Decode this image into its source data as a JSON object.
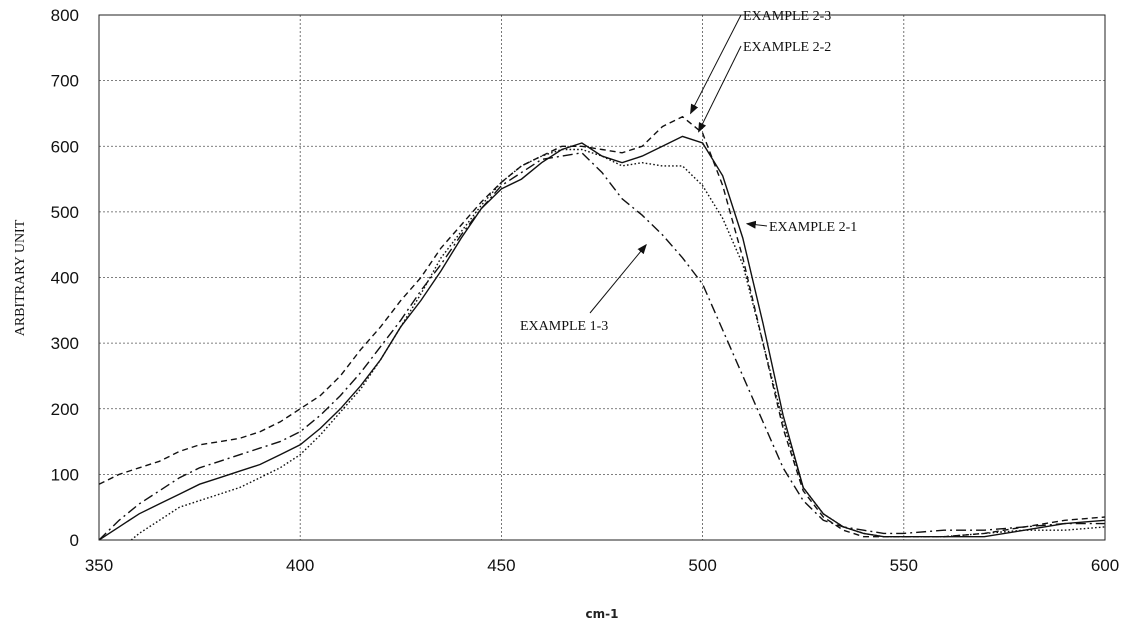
{
  "chart_data": {
    "type": "line",
    "xlabel": "cm-1",
    "ylabel": "ARBITRARY UNIT",
    "xlim": [
      350,
      600
    ],
    "ylim": [
      0,
      800
    ],
    "xticks": [
      350,
      400,
      450,
      500,
      550,
      600
    ],
    "yticks": [
      0,
      100,
      200,
      300,
      400,
      500,
      600,
      700,
      800
    ],
    "grid": true,
    "series": [
      {
        "name": "EXAMPLE 2-2",
        "dash": "solid",
        "x": [
          350,
          355,
          360,
          365,
          370,
          375,
          380,
          385,
          390,
          395,
          400,
          405,
          410,
          415,
          420,
          425,
          430,
          435,
          440,
          445,
          450,
          455,
          460,
          465,
          470,
          475,
          480,
          485,
          490,
          495,
          500,
          505,
          510,
          515,
          520,
          525,
          530,
          535,
          540,
          545,
          550,
          560,
          570,
          580,
          590,
          600
        ],
        "y": [
          0,
          20,
          40,
          55,
          70,
          85,
          95,
          105,
          115,
          130,
          145,
          170,
          200,
          235,
          275,
          325,
          365,
          410,
          460,
          505,
          535,
          550,
          575,
          595,
          605,
          585,
          575,
          585,
          600,
          615,
          605,
          555,
          460,
          330,
          190,
          80,
          40,
          20,
          10,
          5,
          5,
          5,
          5,
          15,
          25,
          30
        ]
      },
      {
        "name": "EXAMPLE 2-1",
        "dash": "dotted",
        "x": [
          358,
          360,
          365,
          370,
          375,
          380,
          385,
          390,
          395,
          400,
          405,
          410,
          415,
          420,
          425,
          430,
          435,
          440,
          445,
          450,
          455,
          460,
          465,
          470,
          475,
          480,
          485,
          490,
          495,
          500,
          505,
          510,
          515,
          520,
          525,
          530,
          535,
          540,
          545,
          550,
          560,
          570,
          580,
          590,
          600
        ],
        "y": [
          0,
          10,
          30,
          50,
          60,
          70,
          80,
          95,
          110,
          130,
          160,
          195,
          230,
          275,
          325,
          375,
          430,
          470,
          510,
          545,
          570,
          585,
          595,
          595,
          585,
          570,
          575,
          570,
          570,
          540,
          490,
          420,
          300,
          180,
          80,
          40,
          20,
          10,
          5,
          5,
          5,
          10,
          15,
          15,
          20
        ]
      },
      {
        "name": "EXAMPLE 2-3",
        "dash": "dashed",
        "x": [
          350,
          355,
          360,
          365,
          370,
          375,
          380,
          385,
          390,
          395,
          400,
          405,
          410,
          415,
          420,
          425,
          430,
          435,
          440,
          445,
          450,
          455,
          460,
          465,
          470,
          475,
          480,
          485,
          490,
          495,
          500,
          505,
          510,
          515,
          520,
          525,
          530,
          535,
          540,
          545,
          550,
          560,
          570,
          580,
          590,
          600
        ],
        "y": [
          85,
          100,
          110,
          120,
          135,
          145,
          150,
          155,
          165,
          180,
          200,
          220,
          250,
          290,
          325,
          365,
          400,
          445,
          480,
          515,
          545,
          570,
          585,
          600,
          600,
          595,
          590,
          600,
          630,
          645,
          620,
          540,
          430,
          300,
          170,
          75,
          35,
          15,
          5,
          5,
          5,
          5,
          10,
          20,
          30,
          35
        ]
      },
      {
        "name": "EXAMPLE 1-3",
        "dash": "dash-dot",
        "x": [
          350,
          355,
          360,
          365,
          370,
          375,
          380,
          385,
          390,
          395,
          400,
          405,
          410,
          415,
          420,
          425,
          430,
          435,
          440,
          445,
          450,
          455,
          460,
          465,
          470,
          475,
          480,
          485,
          490,
          495,
          500,
          505,
          510,
          515,
          520,
          525,
          530,
          535,
          540,
          545,
          550,
          560,
          570,
          580,
          590,
          600
        ],
        "y": [
          0,
          30,
          55,
          75,
          95,
          110,
          120,
          130,
          140,
          150,
          165,
          190,
          220,
          255,
          295,
          335,
          380,
          420,
          465,
          505,
          540,
          560,
          580,
          585,
          590,
          560,
          520,
          495,
          465,
          430,
          390,
          320,
          250,
          180,
          110,
          60,
          30,
          20,
          15,
          10,
          10,
          15,
          15,
          20,
          25,
          25
        ]
      }
    ],
    "annotations": [
      {
        "text": "EXAMPLE 2-3",
        "x": 497,
        "y": 650
      },
      {
        "text": "EXAMPLE 2-2",
        "x": 499,
        "y": 622
      },
      {
        "text": "EXAMPLE 2-1",
        "x": 511,
        "y": 482
      },
      {
        "text": "EXAMPLE 1-3",
        "x": 486,
        "y": 450
      }
    ]
  }
}
